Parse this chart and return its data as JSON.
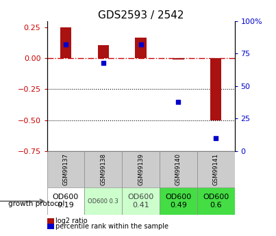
{
  "title": "GDS2593 / 2542",
  "samples": [
    "GSM99137",
    "GSM99138",
    "GSM99139",
    "GSM99140",
    "GSM99141"
  ],
  "log2_ratios": [
    0.25,
    0.105,
    0.165,
    -0.01,
    -0.5
  ],
  "percentile_ranks": [
    82,
    68,
    82,
    38,
    10
  ],
  "ylim_left": [
    -0.75,
    0.3
  ],
  "ylim_right": [
    0,
    100
  ],
  "yticks_left": [
    0.25,
    0,
    -0.25,
    -0.5,
    -0.75
  ],
  "yticks_right": [
    100,
    75,
    50,
    25,
    0
  ],
  "hlines": [
    -0.25,
    -0.5
  ],
  "bar_color": "#aa1111",
  "dot_color": "#0000cc",
  "dashed_line_color": "#cc0000",
  "bar_width": 0.3,
  "protocol_labels": [
    "OD600\n0.19",
    "OD600 0.3",
    "OD600\n0.41",
    "OD600\n0.49",
    "OD600\n0.6"
  ],
  "protocol_colors": [
    "#ffffff",
    "#ccffcc",
    "#ccffcc",
    "#44dd44",
    "#44dd44"
  ],
  "protocol_font_sizes": [
    8,
    6,
    8,
    8,
    8
  ],
  "growth_protocol_text": "growth protocol",
  "legend_items": [
    "log2 ratio",
    "percentile rank within the sample"
  ],
  "title_fontsize": 11,
  "tick_fontsize": 8,
  "right_axis_color": "#0000cc",
  "left_axis_color": "#cc0000"
}
